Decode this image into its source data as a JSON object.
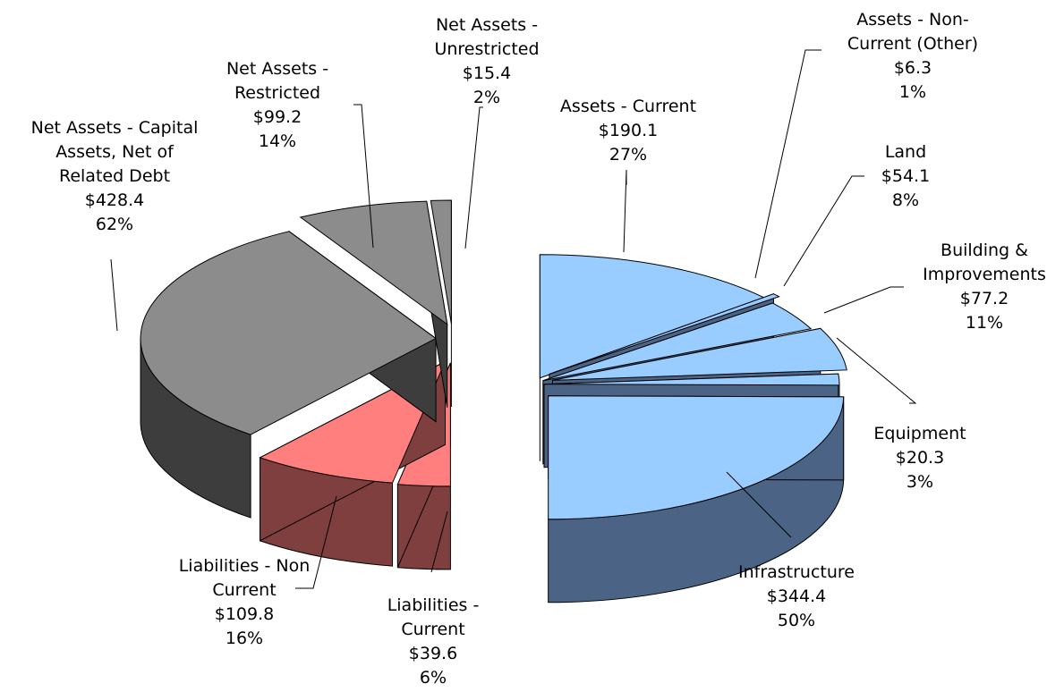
{
  "chart_data": {
    "type": "pie",
    "title": "",
    "three_d": true,
    "exploded": true,
    "legend": "none",
    "slices": [
      {
        "group": "assets",
        "label": [
          "Assets - Current"
        ],
        "value": 190.1,
        "value_text": "$190.1",
        "percent": 27,
        "percent_text": "27%",
        "top_color": "#99ccff",
        "side_color": "#4b6384"
      },
      {
        "group": "assets",
        "label": [
          "Assets - Non-",
          "Current (Other)"
        ],
        "value": 6.3,
        "value_text": "$6.3",
        "percent": 1,
        "percent_text": "1%",
        "top_color": "#99ccff",
        "side_color": "#4b6384"
      },
      {
        "group": "assets",
        "label": [
          "Land"
        ],
        "value": 54.1,
        "value_text": "$54.1",
        "percent": 8,
        "percent_text": "8%",
        "top_color": "#99ccff",
        "side_color": "#4b6384"
      },
      {
        "group": "assets",
        "label": [
          "Building &",
          "Improvements"
        ],
        "value": 77.2,
        "value_text": "$77.2",
        "percent": 11,
        "percent_text": "11%",
        "top_color": "#99ccff",
        "side_color": "#4b6384"
      },
      {
        "group": "assets",
        "label": [
          "Equipment"
        ],
        "value": 20.3,
        "value_text": "$20.3",
        "percent": 3,
        "percent_text": "3%",
        "top_color": "#99ccff",
        "side_color": "#4b6384"
      },
      {
        "group": "assets",
        "label": [
          "Infrastructure"
        ],
        "value": 344.4,
        "value_text": "$344.4",
        "percent": 50,
        "percent_text": "50%",
        "top_color": "#99ccff",
        "side_color": "#4b6384"
      },
      {
        "group": "liabilities",
        "label": [
          "Liabilities -",
          "Current"
        ],
        "value": 39.6,
        "value_text": "$39.6",
        "percent": 6,
        "percent_text": "6%",
        "top_color": "#ff7f7f",
        "side_color": "#7f3f3f"
      },
      {
        "group": "liabilities",
        "label": [
          "Liabilities - Non",
          "Current"
        ],
        "value": 109.8,
        "value_text": "$109.8",
        "percent": 16,
        "percent_text": "16%",
        "top_color": "#ff7f7f",
        "side_color": "#7f3f3f"
      },
      {
        "group": "net_assets",
        "label": [
          "Net Assets - Capital",
          "Assets, Net of",
          "Related Debt"
        ],
        "value": 428.4,
        "value_text": "$428.4",
        "percent": 62,
        "percent_text": "62%",
        "top_color": "#8c8c8c",
        "side_color": "#3d3d3d"
      },
      {
        "group": "net_assets",
        "label": [
          "Net Assets -",
          "Restricted"
        ],
        "value": 99.2,
        "value_text": "$99.2",
        "percent": 14,
        "percent_text": "14%",
        "top_color": "#8c8c8c",
        "side_color": "#3d3d3d"
      },
      {
        "group": "net_assets",
        "label": [
          "Net Assets -",
          "Unrestricted"
        ],
        "value": 15.4,
        "value_text": "$15.4",
        "percent": 2,
        "percent_text": "2%",
        "top_color": "#8c8c8c",
        "side_color": "#3d3d3d"
      }
    ]
  }
}
